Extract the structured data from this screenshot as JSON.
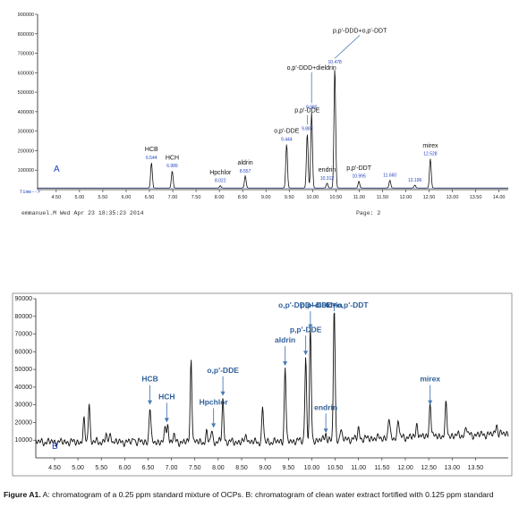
{
  "caption": {
    "label": "Figure A1.",
    "text": "A: chromatogram of a 0.25 ppm standard mixture of OCPs. B: chromatogram of clean water extract fortified with 0.125 ppm standard"
  },
  "header": {
    "footer_left": "emmanuel.M Wed Apr 23 18:35:23 2014",
    "footer_right": "Page: 2"
  },
  "chart_data": [
    {
      "type": "line",
      "panel_label": "A",
      "xlabel": "Time-->",
      "xlim": [
        4.1,
        14.2
      ],
      "ylim": [
        0,
        900000
      ],
      "y_ticks": [
        "100000",
        "200000",
        "300000",
        "400000",
        "500000",
        "600000",
        "700000",
        "800000",
        "900000"
      ],
      "x_ticks": [
        "4.50",
        "5.00",
        "5.50",
        "6.00",
        "6.50",
        "7.00",
        "7.50",
        "8.00",
        "8.50",
        "9.00",
        "9.50",
        "10.00",
        "10.50",
        "11.00",
        "11.50",
        "12.00",
        "12.50",
        "13.00",
        "13.50",
        "14.00"
      ],
      "baseline": 8000,
      "peaks": [
        {
          "rt": 6.544,
          "height": 130000,
          "rt_label": "6.544"
        },
        {
          "rt": 6.989,
          "height": 88000,
          "rt_label": "6.989"
        },
        {
          "rt": 8.022,
          "height": 12000,
          "rt_label": "8.022"
        },
        {
          "rt": 8.557,
          "height": 62000,
          "rt_label": "8.557"
        },
        {
          "rt": 9.444,
          "height": 225000,
          "rt_label": "9.444"
        },
        {
          "rt": 9.887,
          "height": 280000,
          "rt_label": "9.887"
        },
        {
          "rt": 9.98,
          "height": 390000,
          "rt_label": "9.980"
        },
        {
          "rt": 10.312,
          "height": 25000,
          "rt_label": "10.312"
        },
        {
          "rt": 10.478,
          "height": 620000,
          "rt_label": "10.478"
        },
        {
          "rt": 10.995,
          "height": 35000,
          "rt_label": "10.995"
        },
        {
          "rt": 11.66,
          "height": 40000,
          "rt_label": "11.660"
        },
        {
          "rt": 12.196,
          "height": 15000,
          "rt_label": "12.196"
        },
        {
          "rt": 12.528,
          "height": 150000,
          "rt_label": "12.528"
        }
      ],
      "annotations": [
        {
          "text": "HCB",
          "rt": 6.544,
          "offset": 40000
        },
        {
          "text": "HCH",
          "rt": 6.989,
          "offset": 40000
        },
        {
          "text": "Hpchlor",
          "rt": 8.022,
          "offset": 40000
        },
        {
          "text": "aldrin",
          "rt": 8.557,
          "offset": 40000
        },
        {
          "text": "o,p'-DDE",
          "rt": 9.444,
          "offset": 40000
        },
        {
          "text": "p,p'-DDE",
          "rt": 9.887,
          "offset": 90000
        },
        {
          "text": "o,p'-DDD+dieldrin",
          "rt": 9.98,
          "offset": 200000
        },
        {
          "text": "endrin",
          "rt": 10.312,
          "offset": 40000
        },
        {
          "text": "p,p'-DDD+o,p'-DDT",
          "rt": 10.478,
          "offset": 160000
        },
        {
          "text": "p,p'-DDT",
          "rt": 10.995,
          "offset": 40000
        },
        {
          "text": "mirex",
          "rt": 12.528,
          "offset": 40000
        }
      ]
    },
    {
      "type": "line",
      "panel_label": "B",
      "xlim": [
        4.1,
        14.2
      ],
      "ylim": [
        0,
        90000
      ],
      "y_ticks": [
        "10000",
        "20000",
        "30000",
        "40000",
        "50000",
        "60000",
        "70000",
        "80000",
        "90000"
      ],
      "x_ticks": [
        "4.50",
        "5.00",
        "5.50",
        "6.00",
        "6.50",
        "7.00",
        "7.50",
        "8.00",
        "8.50",
        "9.00",
        "9.50",
        "10.00",
        "10.50",
        "11.00",
        "11.50",
        "12.00",
        "12.50",
        "13.00",
        "13.50"
      ],
      "baseline": 9000,
      "peaks": [
        {
          "rt": 5.13,
          "height": 12000
        },
        {
          "rt": 5.24,
          "height": 23000
        },
        {
          "rt": 5.6,
          "height": 4000
        },
        {
          "rt": 5.7,
          "height": 5000
        },
        {
          "rt": 6.2,
          "height": 2500
        },
        {
          "rt": 6.54,
          "height": 20000
        },
        {
          "rt": 6.87,
          "height": 8000
        },
        {
          "rt": 6.92,
          "height": 10000
        },
        {
          "rt": 7.05,
          "height": 4000
        },
        {
          "rt": 7.42,
          "height": 48000
        },
        {
          "rt": 7.75,
          "height": 5000
        },
        {
          "rt": 7.86,
          "height": 7000
        },
        {
          "rt": 8.1,
          "height": 25000
        },
        {
          "rt": 8.6,
          "height": 5000
        },
        {
          "rt": 8.95,
          "height": 20000
        },
        {
          "rt": 9.43,
          "height": 42000
        },
        {
          "rt": 9.87,
          "height": 48000
        },
        {
          "rt": 9.97,
          "height": 63000
        },
        {
          "rt": 10.3,
          "height": 4000
        },
        {
          "rt": 10.48,
          "height": 75000
        },
        {
          "rt": 10.62,
          "height": 6000
        },
        {
          "rt": 11.0,
          "height": 6000
        },
        {
          "rt": 11.65,
          "height": 11000
        },
        {
          "rt": 11.85,
          "height": 10000
        },
        {
          "rt": 12.25,
          "height": 8000
        },
        {
          "rt": 12.53,
          "height": 20000
        },
        {
          "rt": 12.87,
          "height": 18000
        },
        {
          "rt": 13.3,
          "height": 5000
        },
        {
          "rt": 13.95,
          "height": 6000
        }
      ],
      "annotations": [
        {
          "text": "HCB",
          "rt": 6.54
        },
        {
          "text": "HCH",
          "rt": 6.9
        },
        {
          "text": "Hpchlor",
          "rt": 7.9
        },
        {
          "text": "aldrin",
          "rt": 9.43
        },
        {
          "text": "o,p'-DDE",
          "rt": 8.1
        },
        {
          "text": "p,p'-DDE",
          "rt": 9.87
        },
        {
          "text": "o,p'-DDD+dieldrin",
          "rt": 9.97
        },
        {
          "text": "endrin",
          "rt": 10.3
        },
        {
          "text": "p,p'-DDD+o,p'-DDT",
          "rt": 10.48
        },
        {
          "text": "mirex",
          "rt": 12.53
        }
      ]
    }
  ],
  "colors": {
    "trace": "#111111",
    "arrow": "#4a7ab5",
    "label_b": "#2f5f9a",
    "baseline_a": "#1f3fbf",
    "rt_label_a": "#1f3fbf"
  }
}
